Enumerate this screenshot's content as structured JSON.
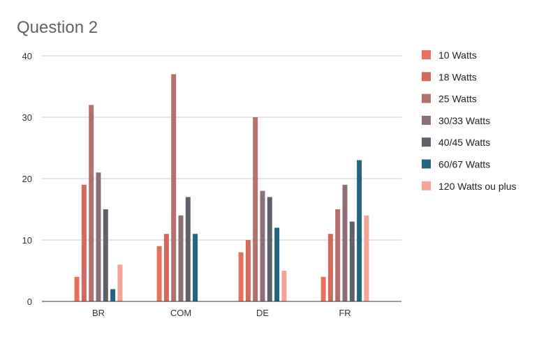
{
  "chart_data": {
    "type": "bar",
    "title": "Question 2",
    "xlabel": "",
    "ylabel": "",
    "ylim": [
      0,
      40
    ],
    "yticks": [
      0,
      10,
      20,
      30,
      40
    ],
    "categories": [
      "BR",
      "COM",
      "DE",
      "FR"
    ],
    "legend_position": "right",
    "series": [
      {
        "name": "10 Watts",
        "color": "#e8715e",
        "values": [
          4,
          9,
          8,
          4
        ]
      },
      {
        "name": "18 Watts",
        "color": "#d46a5e",
        "values": [
          19,
          11,
          10,
          11
        ]
      },
      {
        "name": "25 Watts",
        "color": "#b5706e",
        "values": [
          32,
          37,
          30,
          15
        ]
      },
      {
        "name": "30/33 Watts",
        "color": "#8c7078",
        "values": [
          21,
          14,
          18,
          19
        ]
      },
      {
        "name": "40/45 Watts",
        "color": "#5f6168",
        "values": [
          15,
          17,
          17,
          13
        ]
      },
      {
        "name": "60/67 Watts",
        "color": "#236480",
        "values": [
          2,
          11,
          12,
          23
        ]
      },
      {
        "name": "120 Watts ou plus",
        "color": "#f4a597",
        "values": [
          6,
          0,
          5,
          14
        ]
      }
    ]
  }
}
